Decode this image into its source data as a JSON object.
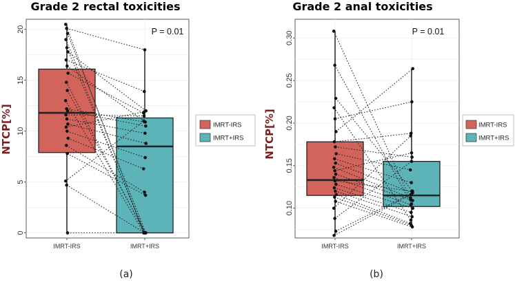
{
  "chart_data": [
    {
      "type": "box",
      "title": "Grade 2 rectal toxicities",
      "ylabel": "NTCP[%]",
      "ylim": [
        -0.5,
        21
      ],
      "yticks": [
        "0",
        "5",
        "10",
        "15",
        "20"
      ],
      "categories": [
        "IMRT-IRS",
        "IMRT+IRS"
      ],
      "annotation": "P = 0.01",
      "caption": "(a)",
      "legend": [
        {
          "label": "IMRT-IRS",
          "color": "#d2645c"
        },
        {
          "label": "IMRT+IRS",
          "color": "#5cb3b8"
        }
      ],
      "boxes": [
        {
          "name": "IMRT-IRS",
          "q1": 7.9,
          "median": 11.8,
          "q3": 16.1,
          "whisker_low": 0,
          "whisker_high": 20.5
        },
        {
          "name": "IMRT+IRS",
          "q1": 0,
          "median": 8.5,
          "q3": 11.3,
          "whisker_low": 0,
          "whisker_high": 18
        }
      ],
      "pairs": [
        [
          20.5,
          0
        ],
        [
          20.1,
          18
        ],
        [
          19.6,
          0
        ],
        [
          19.0,
          0
        ],
        [
          18.2,
          0
        ],
        [
          17.8,
          12
        ],
        [
          17.0,
          13.9
        ],
        [
          16.4,
          10.9
        ],
        [
          15.7,
          11.8
        ],
        [
          14.8,
          0
        ],
        [
          14.0,
          0
        ],
        [
          13.0,
          0
        ],
        [
          12.2,
          10.9
        ],
        [
          12.0,
          10.5
        ],
        [
          11.6,
          11.5
        ],
        [
          11.2,
          9.8
        ],
        [
          10.7,
          8.8
        ],
        [
          10.4,
          11.9
        ],
        [
          10.0,
          7.4
        ],
        [
          9.3,
          6.3
        ],
        [
          8.6,
          4.0
        ],
        [
          7.8,
          3.7
        ],
        [
          5.1,
          11.0
        ],
        [
          4.7,
          0
        ],
        [
          0,
          0
        ]
      ]
    },
    {
      "type": "box",
      "title": "Grade 2 anal toxicities",
      "ylabel": "NTCP[%]",
      "ylim": [
        0.065,
        0.322
      ],
      "yticks": [
        "0.10",
        "0.15",
        "0.20",
        "0.25",
        "0.30"
      ],
      "categories": [
        "IMRT-IRS",
        "IMRT+IRS"
      ],
      "annotation": "P = 0.01",
      "caption": "(b)",
      "legend": [
        {
          "label": "IMRT-IRS",
          "color": "#d2645c"
        },
        {
          "label": "IMRT+IRS",
          "color": "#5cb3b8"
        }
      ],
      "boxes": [
        {
          "name": "IMRT-IRS",
          "q1": 0.115,
          "median": 0.133,
          "q3": 0.178,
          "whisker_low": 0.068,
          "whisker_high": 0.308
        },
        {
          "name": "IMRT+IRS",
          "q1": 0.102,
          "median": 0.115,
          "q3": 0.155,
          "whisker_low": 0.078,
          "whisker_high": 0.264
        }
      ],
      "pairs": [
        [
          0.308,
          0.11
        ],
        [
          0.268,
          0.105
        ],
        [
          0.229,
          0.12
        ],
        [
          0.218,
          0.086
        ],
        [
          0.205,
          0.225
        ],
        [
          0.19,
          0.264
        ],
        [
          0.178,
          0.188
        ],
        [
          0.172,
          0.16
        ],
        [
          0.164,
          0.145
        ],
        [
          0.158,
          0.13
        ],
        [
          0.153,
          0.118
        ],
        [
          0.148,
          0.112
        ],
        [
          0.144,
          0.165
        ],
        [
          0.14,
          0.109
        ],
        [
          0.136,
          0.104
        ],
        [
          0.132,
          0.12
        ],
        [
          0.128,
          0.1
        ],
        [
          0.124,
          0.095
        ],
        [
          0.12,
          0.09
        ],
        [
          0.116,
          0.082
        ],
        [
          0.113,
          0.08
        ],
        [
          0.108,
          0.078
        ],
        [
          0.1,
          0.185
        ],
        [
          0.088,
          0.155
        ],
        [
          0.073,
          0.118
        ],
        [
          0.068,
          0.116
        ]
      ]
    }
  ]
}
